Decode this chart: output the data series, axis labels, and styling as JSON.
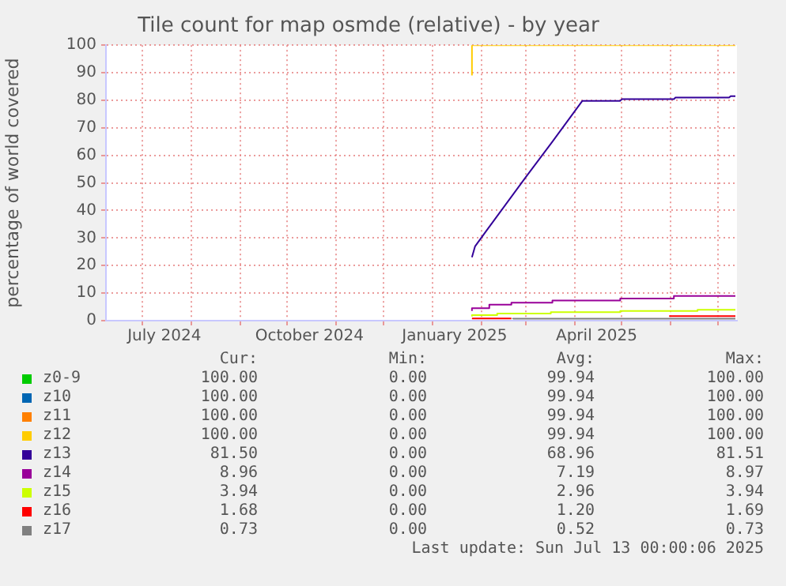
{
  "chart_data": {
    "type": "step",
    "title": "Tile count for map osmde (relative) - by year",
    "ylabel": "percentage of world covered",
    "xlim": [
      "2024-06-08",
      "2025-07-13"
    ],
    "xticks": [
      {
        "value": "2024-07-01",
        "label": null
      },
      {
        "value": "2024-07-15",
        "label": "July 2024"
      },
      {
        "value": "2024-08-01",
        "label": null
      },
      {
        "value": "2024-09-01",
        "label": null
      },
      {
        "value": "2024-10-01",
        "label": null
      },
      {
        "value": "2024-10-15",
        "label": "October 2024"
      },
      {
        "value": "2024-11-01",
        "label": null
      },
      {
        "value": "2024-12-01",
        "label": null
      },
      {
        "value": "2025-01-01",
        "label": null
      },
      {
        "value": "2025-01-15",
        "label": "January 2025"
      },
      {
        "value": "2025-02-01",
        "label": null
      },
      {
        "value": "2025-03-01",
        "label": null
      },
      {
        "value": "2025-04-01",
        "label": null
      },
      {
        "value": "2025-04-15",
        "label": "April 2025"
      },
      {
        "value": "2025-05-01",
        "label": null
      },
      {
        "value": "2025-06-01",
        "label": null
      },
      {
        "value": "2025-07-01",
        "label": null
      }
    ],
    "ylim": [
      0,
      100
    ],
    "yticks": [
      0,
      10,
      20,
      30,
      40,
      50,
      60,
      70,
      80,
      90,
      100
    ],
    "grid": true,
    "legend": "bottom",
    "series": [
      {
        "name": "z0-9",
        "color": "#00cc00"
      },
      {
        "name": "z10",
        "color": "#0066b3"
      },
      {
        "name": "z11",
        "color": "#ff8000"
      },
      {
        "name": "z12",
        "color": "#ffcc00",
        "x": [
          "2025-01-26",
          "2025-01-27",
          "2025-07-12"
        ],
        "values": [
          89,
          100,
          100
        ]
      },
      {
        "name": "z13",
        "color": "#330099",
        "type": "line",
        "x": [
          "2025-01-26",
          "2025-01-28",
          "2025-02-04",
          "2025-03-01",
          "2025-03-18",
          "2025-04-06",
          "2025-04-30",
          "2025-05-01",
          "2025-06-03",
          "2025-06-04",
          "2025-07-08",
          "2025-07-09",
          "2025-07-12"
        ],
        "values": [
          23,
          27,
          32.5,
          52,
          65,
          79.8,
          79.8,
          80.4,
          80.4,
          81,
          81,
          81.5,
          81.5
        ]
      },
      {
        "name": "z14",
        "color": "#990099",
        "x": [
          "2025-01-26",
          "2025-02-06",
          "2025-02-20",
          "2025-03-18",
          "2025-04-30",
          "2025-06-03",
          "2025-07-08",
          "2025-07-12"
        ],
        "values": [
          3.5,
          4.5,
          5.8,
          6.5,
          7.3,
          8,
          8.96,
          8.96
        ]
      },
      {
        "name": "z15",
        "color": "#ccff00",
        "x": [
          "2025-01-26",
          "2025-02-11",
          "2025-03-17",
          "2025-04-30",
          "2025-06-18",
          "2025-07-08",
          "2025-07-12"
        ],
        "values": [
          1.5,
          2,
          2.6,
          3.1,
          3.5,
          3.94,
          3.94
        ]
      },
      {
        "name": "z16",
        "color": "#ff0000",
        "x": [
          "2025-01-26",
          "2025-02-20",
          "2025-02-21",
          "2025-05-31",
          "2025-07-12"
        ],
        "values": [
          0.8,
          0.8,
          null,
          1.68,
          1.68
        ]
      },
      {
        "name": "z17",
        "color": "#808080",
        "x": [
          "2025-02-21",
          "2025-05-31",
          "2025-07-12"
        ],
        "values": [
          0.6,
          0.7,
          0.73
        ]
      }
    ],
    "annotations": [
      "Cur:",
      "Min:",
      "Avg:",
      "Max:",
      "100.00",
      "0.00",
      "99.94",
      "100.00",
      "100.00",
      "0.00",
      "99.94",
      "100.00",
      "100.00",
      "0.00",
      "99.94",
      "100.00",
      "100.00",
      "0.00",
      "99.94",
      "100.00",
      "81.50",
      "0.00",
      "68.96",
      "81.51",
      "8.96",
      "0.00",
      "7.19",
      "8.97",
      "3.94",
      "0.00",
      "2.96",
      "3.94",
      "1.68",
      "0.00",
      "1.20",
      "1.69",
      "0.73",
      "0.00",
      "0.52",
      "0.73",
      "Last update: Sun Jul 13 00:00:06 2025"
    ]
  }
}
